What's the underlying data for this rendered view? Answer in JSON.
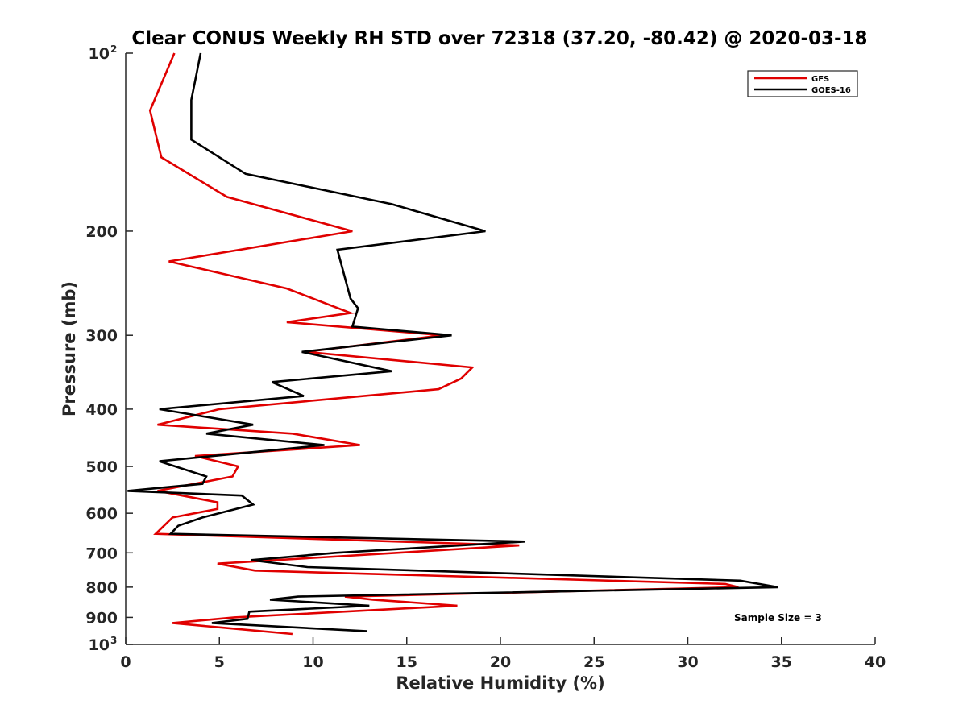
{
  "chart_data": {
    "type": "line",
    "title": "Clear CONUS Weekly RH STD over 72318 (37.20, -80.42) @ 2020-03-18",
    "xlabel": "Relative Humidity (%)",
    "ylabel": "Pressure (mb)",
    "xlim": [
      0,
      40
    ],
    "ylim": [
      100,
      1000
    ],
    "y_scale": "log",
    "y_reversed": true,
    "x_ticks": [
      0,
      5,
      10,
      15,
      20,
      25,
      30,
      35,
      40
    ],
    "x_tick_labels": [
      "0",
      "5",
      "10",
      "15",
      "20",
      "25",
      "30",
      "35",
      "40"
    ],
    "y_ticks": [
      {
        "value": 100,
        "label": "10",
        "sup": "2"
      },
      {
        "value": 200,
        "label": "200",
        "sup": ""
      },
      {
        "value": 300,
        "label": "300",
        "sup": ""
      },
      {
        "value": 400,
        "label": "400",
        "sup": ""
      },
      {
        "value": 500,
        "label": "500",
        "sup": ""
      },
      {
        "value": 600,
        "label": "600",
        "sup": ""
      },
      {
        "value": 700,
        "label": "700",
        "sup": ""
      },
      {
        "value": 800,
        "label": "800",
        "sup": ""
      },
      {
        "value": 900,
        "label": "900",
        "sup": ""
      },
      {
        "value": 1000,
        "label": "10",
        "sup": "3"
      }
    ],
    "grid": false,
    "legend_position": "top-right",
    "annotation": "Sample Size = 3",
    "series": [
      {
        "name": "GFS",
        "color": "#e00000",
        "points": [
          [
            2.6,
            100
          ],
          [
            1.3,
            125
          ],
          [
            1.9,
            150
          ],
          [
            5.4,
            175
          ],
          [
            12.1,
            200
          ],
          [
            2.3,
            225
          ],
          [
            8.6,
            250
          ],
          [
            12.0,
            275
          ],
          [
            8.6,
            285
          ],
          [
            16.9,
            300
          ],
          [
            9.6,
            320
          ],
          [
            18.5,
            340
          ],
          [
            17.9,
            355
          ],
          [
            16.7,
            370
          ],
          [
            5.0,
            400
          ],
          [
            1.7,
            425
          ],
          [
            8.9,
            440
          ],
          [
            12.5,
            460
          ],
          [
            3.7,
            480
          ],
          [
            6.0,
            500
          ],
          [
            5.7,
            520
          ],
          [
            1.7,
            550
          ],
          [
            4.9,
            575
          ],
          [
            4.9,
            590
          ],
          [
            2.5,
            610
          ],
          [
            1.6,
            650
          ],
          [
            21.0,
            680
          ],
          [
            4.9,
            730
          ],
          [
            6.9,
            750
          ],
          [
            32.0,
            790
          ],
          [
            32.7,
            800
          ],
          [
            11.7,
            830
          ],
          [
            13.2,
            840
          ],
          [
            17.7,
            860
          ],
          [
            5.8,
            900
          ],
          [
            2.5,
            920
          ],
          [
            4.9,
            935
          ],
          [
            8.9,
            960
          ]
        ]
      },
      {
        "name": "GOES-16",
        "color": "#000000",
        "points": [
          [
            4.0,
            100
          ],
          [
            3.5,
            120
          ],
          [
            3.5,
            140
          ],
          [
            6.4,
            160
          ],
          [
            14.2,
            180
          ],
          [
            19.2,
            200
          ],
          [
            11.3,
            215
          ],
          [
            12.0,
            260
          ],
          [
            12.4,
            270
          ],
          [
            12.1,
            290
          ],
          [
            17.4,
            300
          ],
          [
            9.4,
            320
          ],
          [
            14.2,
            345
          ],
          [
            7.8,
            360
          ],
          [
            9.5,
            380
          ],
          [
            1.8,
            400
          ],
          [
            6.8,
            425
          ],
          [
            4.3,
            440
          ],
          [
            10.6,
            460
          ],
          [
            1.8,
            490
          ],
          [
            4.3,
            520
          ],
          [
            4.1,
            535
          ],
          [
            0.1,
            550
          ],
          [
            6.2,
            560
          ],
          [
            6.8,
            580
          ],
          [
            4.1,
            610
          ],
          [
            2.8,
            630
          ],
          [
            2.4,
            650
          ],
          [
            21.3,
            670
          ],
          [
            11.2,
            700
          ],
          [
            6.7,
            720
          ],
          [
            9.7,
            740
          ],
          [
            32.8,
            780
          ],
          [
            34.8,
            800
          ],
          [
            9.2,
            830
          ],
          [
            7.7,
            840
          ],
          [
            13.0,
            860
          ],
          [
            6.6,
            880
          ],
          [
            6.5,
            905
          ],
          [
            4.6,
            920
          ],
          [
            12.9,
            950
          ]
        ]
      }
    ]
  }
}
